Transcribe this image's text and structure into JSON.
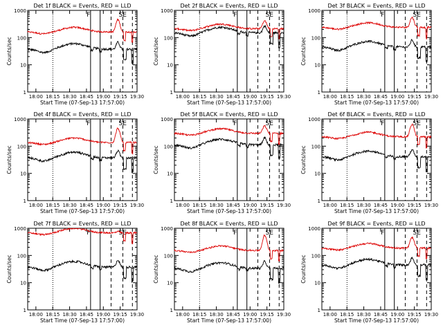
{
  "chart_data": {
    "type": "line",
    "y_scale": "log",
    "ylim": [
      1,
      1000
    ],
    "y_ticks": [
      "1",
      "10",
      "100",
      "1000"
    ],
    "y_label": "Counts/sec",
    "x_label": "Start Time (07-Sep-13 17:57:00)",
    "x_ticks": [
      "18:00",
      "18:15",
      "18:30",
      "18:45",
      "19:00",
      "19:15",
      "19:30"
    ],
    "x_range_minutes": [
      0,
      40
    ],
    "series_legend": {
      "black": "Events",
      "red": "LLD"
    },
    "colors": {
      "events": "#000000",
      "lld": "#dd0000"
    },
    "event_markers": [
      {
        "label": "F",
        "minute": 23.0,
        "style": "solid"
      },
      {
        "label": "SE",
        "minute": 35.5,
        "style": "dashed"
      }
    ],
    "panels": [
      {
        "title": "Det 1f BLACK = Events, RED = LLD",
        "events_base": 50,
        "lld_base": 190,
        "flare_peak": 500,
        "solid_lines": [
          23.0,
          26.5
        ],
        "dashed_lines": [
          30.5,
          34.8,
          38.3
        ]
      },
      {
        "title": "Det 2f BLACK = Events, RED = LLD",
        "events_base": 200,
        "lld_base": 250,
        "flare_peak": 450,
        "solid_lines": [
          23.0,
          26.5
        ],
        "dashed_lines": [
          30.5,
          34.8,
          38.3
        ]
      },
      {
        "title": "Det 3f BLACK = Events, RED = LLD",
        "events_base": 60,
        "lld_base": 280,
        "flare_peak": 600,
        "solid_lines": [
          23.0,
          26.5
        ],
        "dashed_lines": [
          30.5,
          34.8,
          38.3
        ]
      },
      {
        "title": "Det 4f BLACK = Events, RED = LLD",
        "events_base": 50,
        "lld_base": 160,
        "flare_peak": 500,
        "solid_lines": [
          23.0,
          26.5
        ],
        "dashed_lines": [
          30.5,
          34.8,
          38.3
        ]
      },
      {
        "title": "Det 5f BLACK = Events, RED = LLD",
        "events_base": 150,
        "lld_base": 350,
        "flare_peak": 600,
        "solid_lines": [
          23.0,
          26.5
        ],
        "dashed_lines": [
          30.5,
          34.8,
          38.3
        ]
      },
      {
        "title": "Det 6f BLACK = Events, RED = LLD",
        "events_base": 55,
        "lld_base": 260,
        "flare_peak": 700,
        "solid_lines": [
          23.0,
          26.5
        ],
        "dashed_lines": [
          30.5,
          34.8,
          38.3
        ]
      },
      {
        "title": "Det 7f BLACK = Events, RED = LLD",
        "events_base": 50,
        "lld_base": 800,
        "flare_peak": 800,
        "solid_lines": [
          23.0,
          26.5
        ],
        "dashed_lines": [
          30.5,
          34.8,
          38.3
        ]
      },
      {
        "title": "Det 8f BLACK = Events, RED = LLD",
        "events_base": 45,
        "lld_base": 180,
        "flare_peak": 600,
        "solid_lines": [
          23.0,
          26.5
        ],
        "dashed_lines": [
          30.5,
          34.8,
          38.3
        ]
      },
      {
        "title": "Det 9f BLACK = Events, RED = LLD",
        "events_base": 60,
        "lld_base": 220,
        "flare_peak": 500,
        "solid_lines": [
          23.0,
          26.5
        ],
        "dashed_lines": [
          30.5,
          34.8,
          38.3
        ]
      }
    ]
  }
}
